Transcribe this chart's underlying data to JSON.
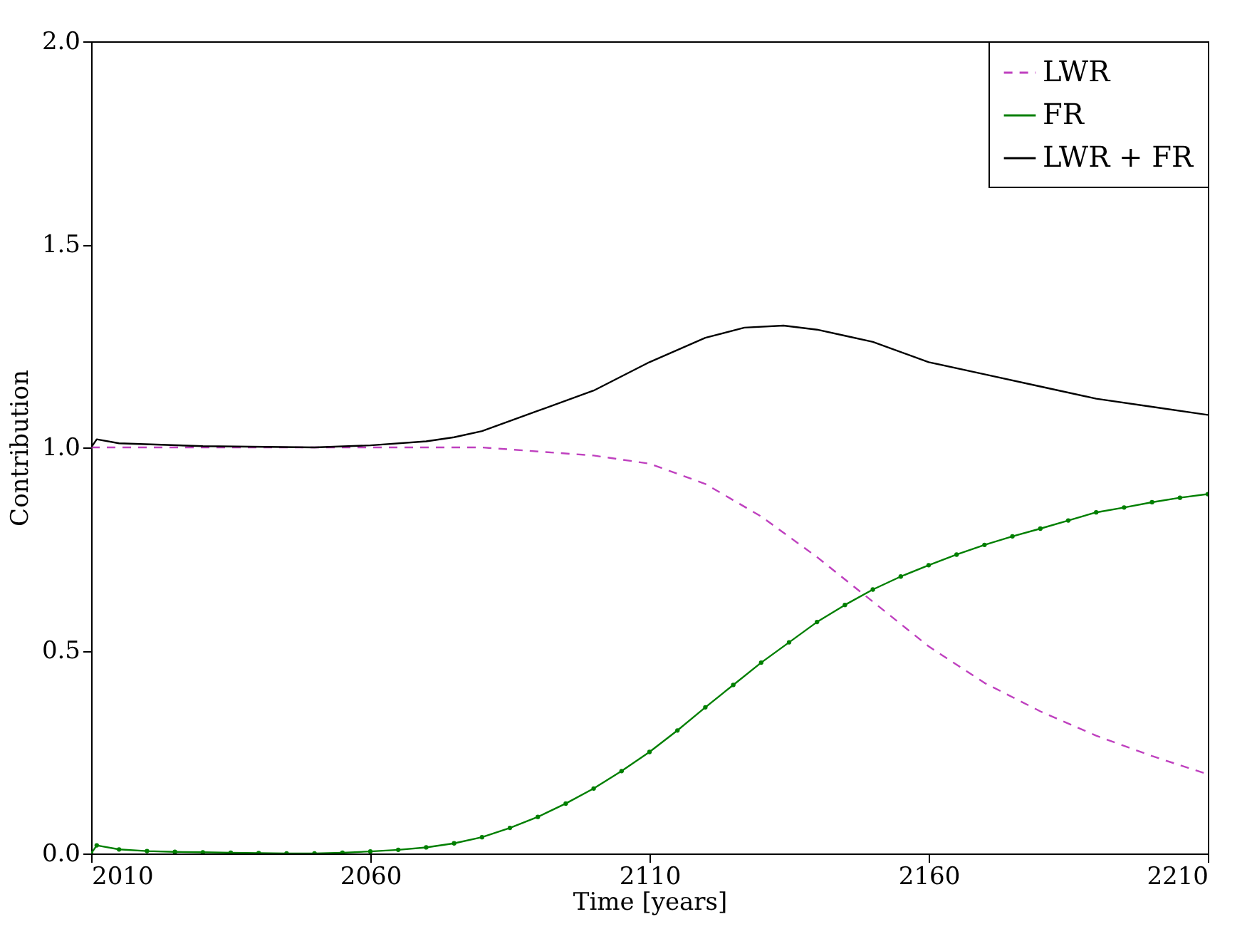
{
  "chart_data": {
    "type": "line",
    "xlabel": "Time [years]",
    "ylabel": "Contribution",
    "xlim": [
      2010,
      2210
    ],
    "xticks": [
      2010,
      2060,
      2110,
      2160,
      2210
    ],
    "ylim": [
      0,
      2
    ],
    "yticks": [
      {
        "value": 0,
        "label": "0.0"
      },
      {
        "value": 0.5,
        "label": "0.5"
      },
      {
        "value": 1,
        "label": "1.0"
      },
      {
        "value": 1.5,
        "label": "1.5"
      },
      {
        "value": 2,
        "label": "2.0"
      }
    ],
    "grid": false,
    "legend": "top right",
    "series": [
      {
        "name": "LWR",
        "color": "#bf40bf",
        "line_style": "dashed",
        "marker": "none",
        "x": [
          2010,
          2020,
          2030,
          2040,
          2050,
          2060,
          2070,
          2080,
          2090,
          2100,
          2110,
          2120,
          2130,
          2140,
          2150,
          2160,
          2170,
          2180,
          2190,
          2200,
          2210
        ],
        "values": [
          1.0,
          1.0,
          1.0,
          1.0,
          1.0,
          1.0,
          1.0,
          1.0,
          0.99,
          0.98,
          0.96,
          0.91,
          0.83,
          0.73,
          0.62,
          0.51,
          0.42,
          0.35,
          0.29,
          0.24,
          0.195
        ]
      },
      {
        "name": "FR",
        "color": "#007f00",
        "line_style": "solid",
        "marker": "circle",
        "x": [
          2010,
          2011,
          2015,
          2020,
          2025,
          2030,
          2035,
          2040,
          2045,
          2050,
          2055,
          2060,
          2065,
          2070,
          2075,
          2080,
          2085,
          2090,
          2095,
          2100,
          2105,
          2110,
          2115,
          2120,
          2125,
          2130,
          2135,
          2140,
          2145,
          2150,
          2155,
          2160,
          2165,
          2170,
          2175,
          2180,
          2185,
          2190,
          2195,
          2200,
          2205,
          2210
        ],
        "values": [
          0.0,
          0.02,
          0.01,
          0.006,
          0.004,
          0.003,
          0.002,
          0.001,
          0.0,
          0.0,
          0.002,
          0.005,
          0.009,
          0.015,
          0.025,
          0.04,
          0.063,
          0.09,
          0.123,
          0.16,
          0.203,
          0.25,
          0.303,
          0.36,
          0.415,
          0.47,
          0.52,
          0.57,
          0.612,
          0.65,
          0.682,
          0.71,
          0.736,
          0.76,
          0.781,
          0.8,
          0.82,
          0.84,
          0.852,
          0.865,
          0.876,
          0.885
        ]
      },
      {
        "name": "LWR + FR",
        "color": "#000000",
        "line_style": "solid",
        "marker": "none",
        "x": [
          2010,
          2011,
          2015,
          2030,
          2050,
          2060,
          2070,
          2075,
          2080,
          2090,
          2100,
          2110,
          2120,
          2127,
          2134,
          2140,
          2145,
          2150,
          2160,
          2170,
          2180,
          2190,
          2200,
          2210
        ],
        "values": [
          1.0,
          1.02,
          1.01,
          1.003,
          1.0,
          1.005,
          1.015,
          1.025,
          1.04,
          1.09,
          1.14,
          1.21,
          1.27,
          1.295,
          1.3,
          1.29,
          1.275,
          1.26,
          1.21,
          1.18,
          1.15,
          1.12,
          1.1,
          1.08
        ]
      }
    ]
  }
}
